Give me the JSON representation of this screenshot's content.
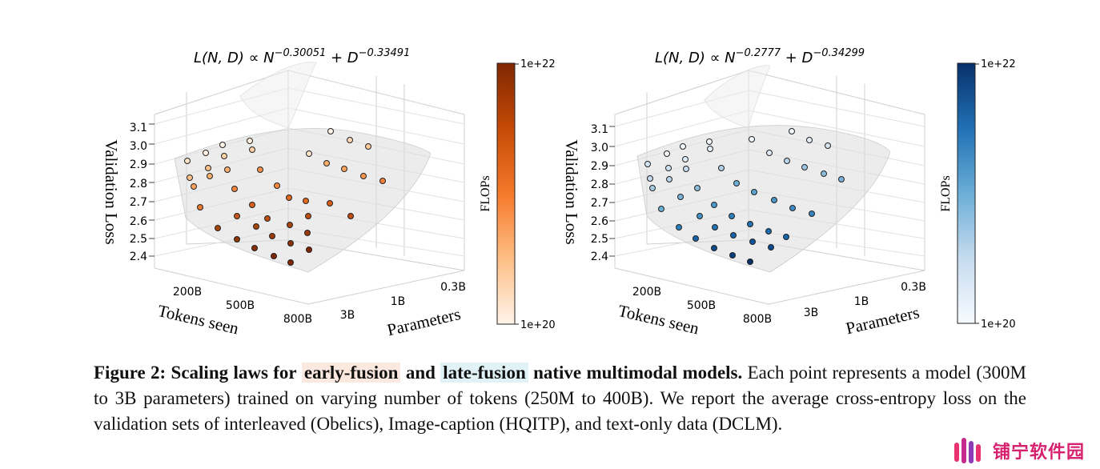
{
  "chart_data": [
    {
      "type": "surface3d-scatter",
      "title": "L(N, D) ∝ N^{−0.30051} + D^{−0.33491}",
      "title_parts": {
        "lhs": "L(N, D) ∝ N",
        "exp1": "−0.30051",
        "mid": " + D",
        "exp2": "−0.33491"
      },
      "xlabel": "Tokens seen",
      "ylabel": "Parameters",
      "zlabel": "Validation Loss",
      "x_ticks": [
        "200B",
        "500B",
        "800B"
      ],
      "y_ticks": [
        "0.3B",
        "1B",
        "3B"
      ],
      "z_ticks": [
        "2.4",
        "2.5",
        "2.6",
        "2.7",
        "2.8",
        "2.9",
        "3.0",
        "3.1"
      ],
      "colorbar": {
        "label": "FLOPs",
        "min_label": "1e+20",
        "max_label": "1e+22",
        "colors": [
          "#fff4ea",
          "#fdbf86",
          "#f5792a",
          "#c54a05",
          "#7f2704"
        ]
      },
      "exponents": {
        "N": -0.30051,
        "D": -0.33491
      },
      "zlim": [
        2.4,
        3.1
      ],
      "grid": true
    },
    {
      "type": "surface3d-scatter",
      "title": "L(N, D) ∝ N^{−0.2777} + D^{−0.34299}",
      "title_parts": {
        "lhs": "L(N, D) ∝ N",
        "exp1": "−0.2777",
        "mid": " + D",
        "exp2": "−0.34299"
      },
      "xlabel": "Tokens seen",
      "ylabel": "Parameters",
      "zlabel": "Validation Loss",
      "x_ticks": [
        "200B",
        "500B",
        "800B"
      ],
      "y_ticks": [
        "0.3B",
        "1B",
        "3B"
      ],
      "z_ticks": [
        "2.4",
        "2.5",
        "2.6",
        "2.7",
        "2.8",
        "2.9",
        "3.0",
        "3.1"
      ],
      "colorbar": {
        "label": "FLOPs",
        "min_label": "1e+20",
        "max_label": "1e+22",
        "colors": [
          "#f7fbff",
          "#c6dbef",
          "#6baed6",
          "#2171b5",
          "#08306b"
        ]
      },
      "exponents": {
        "N": -0.2777,
        "D": -0.34299
      },
      "zlim": [
        2.4,
        3.1
      ],
      "grid": true
    }
  ],
  "caption": {
    "lead": "Figure 2: Scaling laws for",
    "early": "early-fusion",
    "and": "and",
    "late": "late-fusion",
    "tail": "native multimodal models.",
    "body": "Each point represents a model (300M to 3B parameters) trained on varying number of tokens (250M to 400B). We report the average cross-entropy loss on the validation sets of interleaved (Obelics), Image-caption (HQITP), and text-only data (DCLM)."
  },
  "watermark": {
    "text": "铺宁软件园"
  }
}
